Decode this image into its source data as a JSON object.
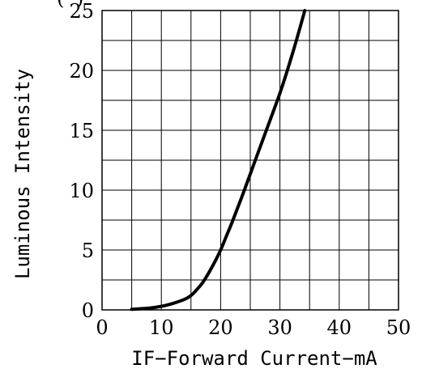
{
  "chart_data": {
    "type": "line",
    "title": "",
    "xlabel": "IF−Forward  Current−mA",
    "ylabel": "Luminous  Intensity",
    "partial_top_label": "(",
    "partial_top_label_right": ")",
    "xlim": [
      0,
      50
    ],
    "ylim": [
      0,
      25
    ],
    "x_ticks": [
      0,
      10,
      20,
      30,
      40,
      50
    ],
    "y_ticks": [
      0,
      5,
      10,
      15,
      20,
      25
    ],
    "x_tick_labels": [
      "0",
      "10",
      "20",
      "30",
      "40",
      "50"
    ],
    "y_tick_labels": [
      "0",
      "5",
      "10",
      "15",
      "20",
      "25"
    ],
    "grid": true,
    "grid_x_step": 5,
    "grid_y_step": 2.5,
    "line_color": "#000000",
    "series": [
      {
        "x": [
          5,
          8,
          10,
          12,
          14,
          15,
          16,
          17,
          18,
          19,
          20,
          21,
          22,
          24,
          26,
          28,
          30,
          32,
          34.2
        ],
        "y": [
          0.05,
          0.15,
          0.3,
          0.55,
          0.9,
          1.2,
          1.7,
          2.3,
          3.1,
          4.0,
          5.0,
          6.2,
          7.4,
          10.0,
          12.7,
          15.4,
          18.1,
          21.2,
          25.0
        ]
      }
    ]
  }
}
